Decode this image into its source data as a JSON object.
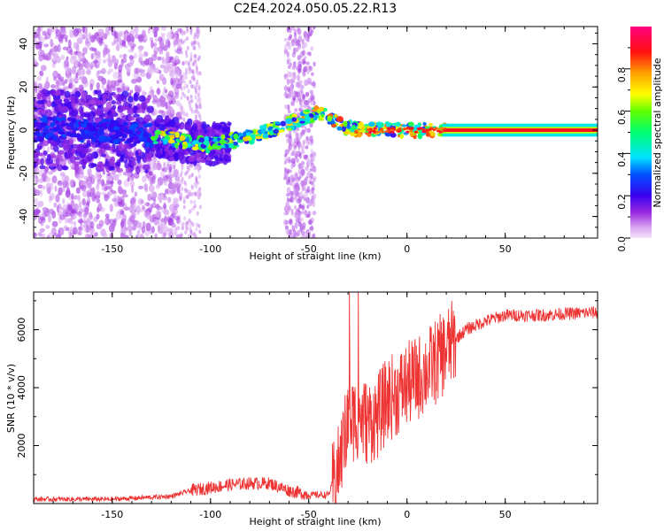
{
  "title": "C2E4.2024.050.05.22.R13",
  "chart_data": [
    {
      "type": "heatmap",
      "xlabel": "Height of straight line (km)",
      "ylabel": "Frequency (Hz)",
      "xlim": [
        -190,
        97
      ],
      "ylim": [
        -50,
        48
      ],
      "x_ticks": [
        -150,
        -100,
        -50,
        0,
        50
      ],
      "y_ticks": [
        -40,
        -20,
        0,
        20,
        40
      ],
      "colorbar": {
        "label": "Normalized spectral amplitude",
        "range": [
          0,
          1
        ],
        "ticks": [
          0.0,
          0.2,
          0.4,
          0.6,
          0.8
        ],
        "colormap": "rainbow-purple-to-red"
      },
      "ridge": {
        "x": [
          -190,
          -140,
          -120,
          -100,
          -80,
          -60,
          -45,
          -38,
          -30,
          -20,
          0,
          20,
          97
        ],
        "y": [
          1,
          -1,
          -4,
          -7,
          -3,
          3,
          8,
          5,
          1,
          0,
          0,
          0,
          0
        ]
      }
    },
    {
      "type": "line",
      "xlabel": "Height of straight line (km)",
      "ylabel": "SNR (10 * v/v)",
      "xlim": [
        -190,
        97
      ],
      "ylim": [
        0,
        7300
      ],
      "x_ticks": [
        -150,
        -100,
        -50,
        0,
        50
      ],
      "y_ticks": [
        2000,
        4000,
        6000
      ],
      "series_color": "#ee3333",
      "profile": {
        "x": [
          -190,
          -150,
          -120,
          -110,
          -100,
          -90,
          -80,
          -70,
          -60,
          -50,
          -40,
          -35,
          -30,
          -25,
          -20,
          -15,
          -10,
          -5,
          0,
          5,
          10,
          15,
          20,
          25,
          30,
          40,
          50,
          60,
          70,
          80,
          97
        ],
        "y": [
          150,
          150,
          250,
          450,
          550,
          650,
          700,
          700,
          450,
          300,
          300,
          1200,
          2800,
          3000,
          2800,
          3000,
          3600,
          3800,
          4100,
          4300,
          4600,
          4900,
          5300,
          5700,
          6000,
          6300,
          6500,
          6500,
          6500,
          6550,
          6600
        ]
      }
    }
  ]
}
